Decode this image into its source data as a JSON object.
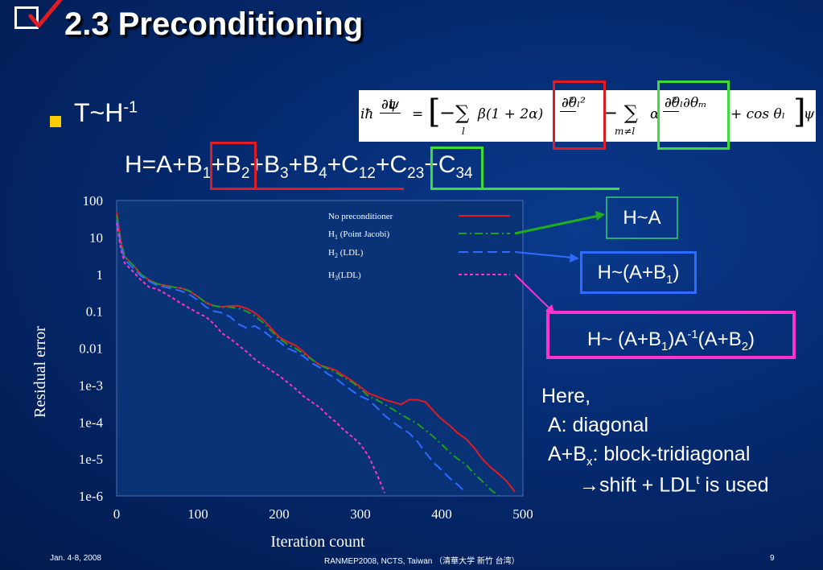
{
  "slide": {
    "title": "2.3 Preconditioning",
    "bullet": {
      "main": "T~H",
      "sup": "-1"
    },
    "hamiltonian": {
      "prefix": "H=A+B",
      "terms": [
        {
          "sub": "1",
          "after": "+B"
        },
        {
          "sub": "2",
          "after": "+B"
        },
        {
          "sub": "3",
          "after": "+B"
        },
        {
          "sub": "4",
          "after": "+C"
        },
        {
          "sub": "12",
          "after": "+C"
        },
        {
          "sub": "23",
          "after": "+C"
        },
        {
          "sub": "34",
          "after": ""
        }
      ]
    },
    "equation": {
      "lhs_num": "∂ψ",
      "lhs_den": "∂t",
      "prefix": "iħ",
      "eq": "=",
      "bracket_open": "[",
      "minus_sum": "−∑",
      "sum_index": "l",
      "beta_term": "β(1 + 2α)",
      "frac1_num": "∂²",
      "frac1_den": "∂θₗ²",
      "minus_sum2": "− ∑",
      "sum2_index": "m≠l",
      "alpha": "α",
      "frac2_num": "∂²",
      "frac2_den": "∂θₗ∂θₘ",
      "cos_term": "+ cos θₗ",
      "bracket_close": "]",
      "psi": "ψ"
    },
    "labels": {
      "h_a": "H~A",
      "h_ab1": {
        "text": "H~(A+B",
        "sub": "1",
        "after": ")"
      },
      "h_ldl": {
        "p1": "H~ (A+B",
        "sub1": "1",
        "p2": ")A",
        "sup": "-1",
        "p3": "(A+B",
        "sub2": "2",
        "p4": ")"
      }
    },
    "notes": {
      "here": "Here,",
      "a": "A: diagonal",
      "abx_pre": "A+B",
      "abx_sub": "x",
      "abx_post": ": block-tridiagonal",
      "shift_arrow": "→",
      "shift_pre": "shift + LDL",
      "shift_sup": "t",
      "shift_post": " is used"
    },
    "footer": {
      "date": "Jan. 4-8, 2008",
      "conference": "RANMEP2008, NCTS, Taiwan （清華大学 新竹 台湾）",
      "page": "9"
    }
  },
  "colors": {
    "red": "#e01b24",
    "green": "#3ddc3d",
    "blue": "#2f6bff",
    "magenta": "#ff33cc",
    "teal": "#2aa876",
    "bullet": "#ffcc00"
  },
  "chart_data": {
    "type": "line",
    "xlabel": "Iteration count",
    "ylabel": "Residual error",
    "xlim": [
      0,
      500
    ],
    "ylim_log10": [
      -6,
      2
    ],
    "y_scale": "log",
    "x_ticks": [
      "0",
      "100",
      "200",
      "300",
      "400",
      "500"
    ],
    "x_tick_values": [
      0,
      100,
      200,
      300,
      400,
      500
    ],
    "y_ticks": [
      "100",
      "10",
      "1",
      "0.1",
      "0.01",
      "1e-3",
      "1e-4",
      "1e-5",
      "1e-6"
    ],
    "y_tick_values": [
      100,
      10,
      1,
      0.1,
      0.01,
      0.001,
      0.0001,
      1e-05,
      1e-06
    ],
    "legend": [
      {
        "name": "No preconditioner",
        "name_main": "No preconditioner",
        "sub": "",
        "color": "#e01b24",
        "dash": ""
      },
      {
        "name": "H1 (Point Jacobi)",
        "name_main": "H",
        "sub": "1",
        "rest": "  (Point Jacobi)",
        "color": "#1f9e1f",
        "dash": "10,4,2,4"
      },
      {
        "name": "H2 (LDL)",
        "name_main": "H",
        "sub": "2",
        "rest": " (LDL)",
        "color": "#2f6bff",
        "dash": "12,6"
      },
      {
        "name": "H3(LDL)",
        "name_main": "H",
        "sub": "3",
        "rest": "(LDL)",
        "color": "#ff33cc",
        "dash": "4,3"
      }
    ],
    "series": [
      {
        "name": "No preconditioner",
        "color": "#e01b24",
        "dash": "",
        "x": [
          0,
          5,
          10,
          20,
          30,
          40,
          50,
          60,
          70,
          80,
          90,
          100,
          110,
          120,
          130,
          140,
          150,
          160,
          170,
          180,
          190,
          200,
          210,
          220,
          230,
          240,
          250,
          260,
          270,
          280,
          290,
          300,
          310,
          320,
          330,
          340,
          350,
          360,
          370,
          380,
          390,
          400,
          410,
          420,
          430,
          440,
          450,
          460,
          470,
          480,
          490
        ],
        "y": [
          50,
          8,
          3,
          1.8,
          1.0,
          0.7,
          0.55,
          0.5,
          0.45,
          0.42,
          0.35,
          0.25,
          0.17,
          0.14,
          0.13,
          0.14,
          0.14,
          0.12,
          0.09,
          0.06,
          0.035,
          0.02,
          0.015,
          0.012,
          0.008,
          0.005,
          0.0035,
          0.003,
          0.0025,
          0.0018,
          0.0013,
          0.0009,
          0.0006,
          0.0005,
          0.0004,
          0.00035,
          0.0003,
          0.0004,
          0.0004,
          0.00035,
          0.0002,
          0.00012,
          8e-05,
          5e-05,
          3.5e-05,
          2e-05,
          1e-05,
          6e-06,
          4e-06,
          2.5e-06,
          1.3e-06
        ]
      },
      {
        "name": "H1 (Point Jacobi)",
        "color": "#1f9e1f",
        "dash": "10,4,2,4",
        "x": [
          0,
          5,
          10,
          20,
          30,
          40,
          50,
          60,
          70,
          80,
          90,
          100,
          110,
          120,
          130,
          140,
          150,
          160,
          170,
          180,
          190,
          200,
          210,
          220,
          230,
          240,
          250,
          260,
          270,
          280,
          290,
          300,
          310,
          320,
          330,
          340,
          350,
          360,
          370,
          380,
          390,
          400,
          410,
          420,
          430,
          440,
          450,
          460,
          470
        ],
        "y": [
          40,
          8,
          3,
          1.8,
          1.0,
          0.7,
          0.55,
          0.5,
          0.45,
          0.42,
          0.35,
          0.25,
          0.17,
          0.14,
          0.13,
          0.13,
          0.12,
          0.1,
          0.075,
          0.05,
          0.03,
          0.018,
          0.013,
          0.01,
          0.007,
          0.005,
          0.0035,
          0.0028,
          0.0022,
          0.0016,
          0.0012,
          0.0008,
          0.0005,
          0.0004,
          0.0003,
          0.00022,
          0.00016,
          0.00012,
          9e-05,
          6e-05,
          4e-05,
          2.5e-05,
          1.5e-05,
          1e-05,
          7e-06,
          4e-06,
          2.5e-06,
          1.5e-06,
          1e-06
        ]
      },
      {
        "name": "H2 (LDL)",
        "color": "#2f6bff",
        "dash": "12,6",
        "x": [
          0,
          5,
          10,
          20,
          30,
          40,
          50,
          60,
          70,
          80,
          90,
          100,
          110,
          120,
          130,
          140,
          150,
          160,
          170,
          180,
          190,
          200,
          210,
          220,
          230,
          240,
          250,
          260,
          270,
          280,
          290,
          300,
          310,
          320,
          330,
          340,
          350,
          360,
          370,
          380,
          390,
          400,
          410,
          420,
          430
        ],
        "y": [
          30,
          6,
          2.5,
          1.5,
          0.9,
          0.65,
          0.5,
          0.45,
          0.4,
          0.35,
          0.28,
          0.2,
          0.13,
          0.1,
          0.09,
          0.07,
          0.045,
          0.035,
          0.04,
          0.03,
          0.02,
          0.015,
          0.01,
          0.008,
          0.006,
          0.004,
          0.003,
          0.002,
          0.0015,
          0.001,
          0.0007,
          0.0005,
          0.0004,
          0.00025,
          0.00015,
          0.0001,
          7e-05,
          5e-05,
          3e-05,
          1.5e-05,
          8e-06,
          5e-06,
          3e-06,
          2e-06,
          1.2e-06
        ]
      },
      {
        "name": "H3(LDL)",
        "color": "#ff33cc",
        "dash": "4,3",
        "x": [
          0,
          5,
          10,
          20,
          30,
          40,
          50,
          60,
          70,
          80,
          90,
          100,
          110,
          120,
          130,
          140,
          150,
          160,
          170,
          180,
          190,
          200,
          210,
          220,
          230,
          240,
          250,
          260,
          270,
          280,
          290,
          300,
          310,
          320,
          330
        ],
        "y": [
          25,
          5,
          2,
          1.2,
          0.7,
          0.45,
          0.4,
          0.3,
          0.22,
          0.16,
          0.12,
          0.09,
          0.07,
          0.045,
          0.025,
          0.018,
          0.012,
          0.008,
          0.005,
          0.0035,
          0.0025,
          0.0018,
          0.0012,
          0.0008,
          0.0005,
          0.00035,
          0.00025,
          0.00015,
          0.0001,
          6e-05,
          4e-05,
          2.5e-05,
          1.2e-05,
          4e-06,
          1.2e-06
        ]
      }
    ]
  }
}
